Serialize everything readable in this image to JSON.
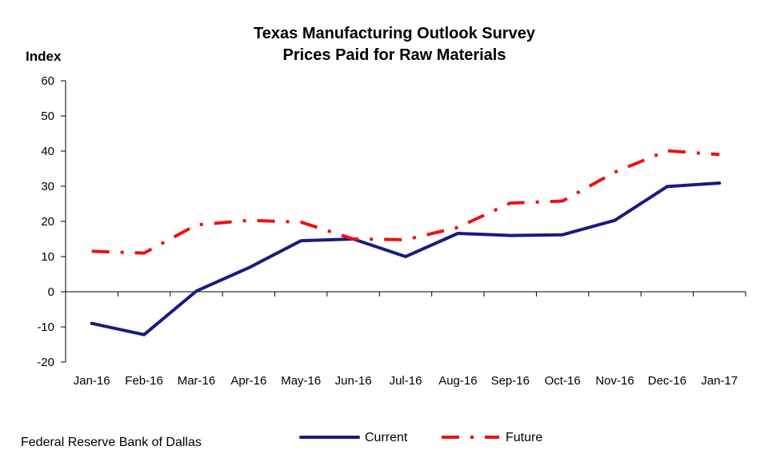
{
  "source": "Federal Reserve Bank of Dallas",
  "chart_data": {
    "type": "line",
    "title": "Texas Manufacturing Outlook Survey",
    "subtitle": "Prices Paid for Raw Materials",
    "ylabel": "Index",
    "xlabel": "",
    "ylim": [
      -20,
      60
    ],
    "yticks": [
      -20,
      -10,
      0,
      10,
      20,
      30,
      40,
      50,
      60
    ],
    "grid": false,
    "legend_position": "bottom",
    "categories": [
      "Jan-16",
      "Feb-16",
      "Mar-16",
      "Apr-16",
      "May-16",
      "Jun-16",
      "Jul-16",
      "Aug-16",
      "Sep-16",
      "Oct-16",
      "Nov-16",
      "Dec-16",
      "Jan-17"
    ],
    "series": [
      {
        "name": "Current",
        "color": "#1a1a80",
        "style": "solid",
        "values": [
          -9.0,
          -12.2,
          0.2,
          6.8,
          14.5,
          15.0,
          10.0,
          16.6,
          16.0,
          16.2,
          20.3,
          29.9,
          30.9
        ]
      },
      {
        "name": "Future",
        "color": "#ee1111",
        "style": "dash-dot",
        "values": [
          11.5,
          11.0,
          19.0,
          20.3,
          19.8,
          15.0,
          14.8,
          18.3,
          25.2,
          25.8,
          34.0,
          40.1,
          39.0
        ]
      }
    ]
  }
}
